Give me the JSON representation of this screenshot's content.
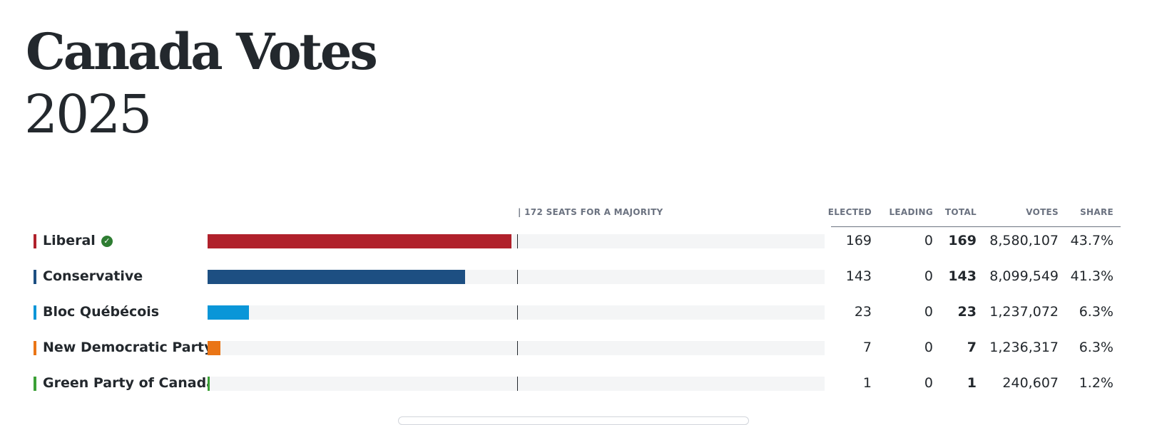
{
  "page": {
    "title": "Canada Votes",
    "year": "2025"
  },
  "table": {
    "majority_label": "| 172 SEATS FOR A MAJORITY",
    "headers": {
      "elected": "ELECTED",
      "leading": "LEADING",
      "total": "TOTAL",
      "votes": "VOTES",
      "share": "SHARE"
    }
  },
  "chart_data": {
    "type": "bar",
    "orientation": "horizontal",
    "majority_seats": 172,
    "xlim": [
      0,
      343
    ],
    "categories": [
      "Liberal",
      "Conservative",
      "Bloc Québécois",
      "New Democratic Party",
      "Green Party of Canada"
    ],
    "series": [
      {
        "values": [
          169,
          143,
          23,
          7,
          1
        ]
      }
    ],
    "colors": [
      "#b0212b",
      "#1d4f82",
      "#0a96d8",
      "#ea7516",
      "#3ba036"
    ],
    "rows": [
      {
        "party": "Liberal",
        "elected": "169",
        "leading": "0",
        "total": "169",
        "votes": "8,580,107",
        "share": "43.7%",
        "winner": true
      },
      {
        "party": "Conservative",
        "elected": "143",
        "leading": "0",
        "total": "143",
        "votes": "8,099,549",
        "share": "41.3%",
        "winner": false
      },
      {
        "party": "Bloc Québécois",
        "elected": "23",
        "leading": "0",
        "total": "23",
        "votes": "1,237,072",
        "share": "6.3%",
        "winner": false
      },
      {
        "party": "New Democratic Party",
        "elected": "7",
        "leading": "0",
        "total": "7",
        "votes": "1,236,317",
        "share": "6.3%",
        "winner": false
      },
      {
        "party": "Green Party of Canada",
        "elected": "1",
        "leading": "0",
        "total": "1",
        "votes": "240,607",
        "share": "1.2%",
        "winner": false
      }
    ]
  }
}
